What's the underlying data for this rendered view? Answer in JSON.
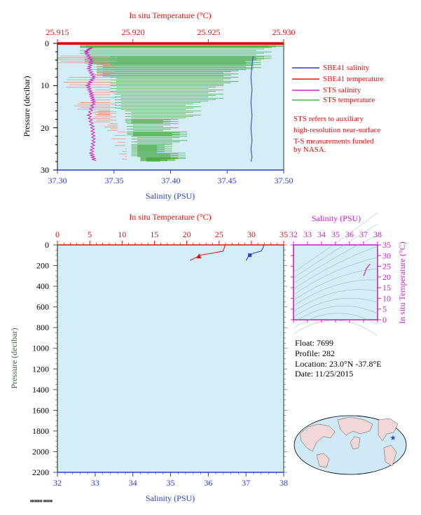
{
  "colors": {
    "background": "#ffffff",
    "plot_bg": "#d3eef6",
    "salinity": "#2a3ccc",
    "temperature": "#e01010",
    "sts_salinity": "#d020d0",
    "sts_temperature": "#4dab4d",
    "sts_temperature_band": "#f5968a",
    "pressure_axis": "#3c6a3c",
    "ts_axis": "#cc20cc"
  },
  "top_panel": {
    "top_axis_label": "In situ Temperature (°C)",
    "bottom_axis_label": "Salinity (PSU)",
    "left_axis_label": "Pressure (decibar)",
    "top_ticks": [
      "25.915",
      "25.920",
      "25.925",
      "25.930"
    ],
    "bottom_ticks": [
      "37.30",
      "37.35",
      "37.40",
      "37.45",
      "37.50"
    ],
    "left_ticks": [
      "0",
      "10",
      "20",
      "30"
    ],
    "legend": [
      {
        "label": "SBE41 salinity"
      },
      {
        "label": "SBE41 temperature"
      },
      {
        "label": "STS salinity"
      },
      {
        "label": "STS temperature"
      }
    ],
    "note": [
      "STS refers to auxiliary",
      "high-resolution near-surface",
      "T-S measurements funded",
      "by NASA."
    ]
  },
  "bottom_panel": {
    "top_axis_label": "In situ Temperature (°C)",
    "bottom_axis_label": "Salinity (PSU)",
    "left_axis_label": "Pressure (decibar)",
    "top_ticks": [
      "0",
      "5",
      "10",
      "15",
      "20",
      "25",
      "30",
      "35"
    ],
    "bottom_ticks": [
      "32",
      "33",
      "34",
      "35",
      "36",
      "37",
      "38"
    ],
    "left_ticks": [
      "0",
      "200",
      "400",
      "600",
      "800",
      "1000",
      "1200",
      "1400",
      "1600",
      "1800",
      "2000",
      "2200"
    ]
  },
  "ts_panel": {
    "top_axis_label": "Salinity (PSU)",
    "right_axis_label": "In situ Temperature (°C)",
    "top_ticks": [
      "32",
      "33",
      "34",
      "35",
      "36",
      "37",
      "38"
    ],
    "right_ticks": [
      "35",
      "30",
      "25",
      "20",
      "15",
      "10",
      "5",
      "0"
    ]
  },
  "float_info": {
    "float": "Float:  7699",
    "profile": "Profile:  282",
    "location": "Location:  23.0°N  -37.8°E",
    "date": "Date:  11/25/2015"
  },
  "chart_data": [
    {
      "type": "line",
      "panel": "top",
      "xlim_salinity": [
        37.3,
        37.5
      ],
      "xlim_temperature": [
        25.915,
        25.93
      ],
      "ylim_pressure": [
        0,
        30
      ],
      "series": [
        {
          "name": "SBE41 salinity",
          "x": [
            37.473,
            37.472,
            37.471,
            37.472,
            37.471,
            37.472,
            37.471,
            37.472,
            37.471,
            37.472,
            37.471
          ],
          "y": [
            3,
            5,
            8,
            11,
            14,
            17,
            20,
            23,
            25,
            27,
            28
          ]
        },
        {
          "name": "STS salinity",
          "x": [
            37.33,
            37.325,
            37.33,
            37.328,
            37.332,
            37.327,
            37.33,
            37.332,
            37.328,
            37.331,
            37.332,
            37.33,
            37.333
          ],
          "y": [
            1,
            2,
            4,
            6,
            8,
            10,
            12,
            14,
            17,
            20,
            23,
            26,
            28
          ]
        },
        {
          "name": "STS temperature",
          "x": [
            25.93,
            25.9165,
            25.9292,
            25.9168,
            25.9285,
            25.9176,
            25.927,
            25.9185,
            25.926,
            25.9188,
            25.9245,
            25.9195,
            25.923,
            25.9196,
            25.9236,
            25.9199,
            25.9226,
            25.9199,
            25.9235,
            25.9205,
            25.9228
          ],
          "y": [
            0.5,
            1,
            3,
            4,
            5,
            6.5,
            8,
            10,
            12,
            14,
            16,
            18,
            19,
            21,
            22,
            24,
            25,
            26,
            27,
            27.5,
            28
          ]
        },
        {
          "name": "STS temperature (shaded band)",
          "x": [
            25.9152,
            25.9176,
            25.9158,
            25.9175,
            25.9165,
            25.9177,
            25.9176,
            25.9185,
            25.919,
            25.9195,
            25.9196
          ],
          "y": [
            3,
            5,
            8,
            11,
            14,
            16,
            17,
            19,
            21,
            25,
            28
          ]
        }
      ]
    },
    {
      "type": "line",
      "panel": "bottom",
      "xlim_salinity": [
        32,
        38
      ],
      "xlim_temperature": [
        0,
        35
      ],
      "ylim_pressure": [
        0,
        2200
      ],
      "series": [
        {
          "name": "SBE41 temperature",
          "x": [
            25.9,
            25.9,
            25.8,
            25.6,
            24,
            22,
            21.5,
            20.5
          ],
          "y": [
            0,
            10,
            30,
            60,
            80,
            100,
            120,
            150
          ]
        },
        {
          "name": "SBE41 salinity",
          "x": [
            37.47,
            37.47,
            37.45,
            37.4,
            37.2,
            37.1,
            37.05,
            37.0
          ],
          "y": [
            0,
            10,
            30,
            60,
            80,
            100,
            120,
            150
          ]
        }
      ]
    },
    {
      "type": "scatter",
      "panel": "ts",
      "xlim_salinity": [
        32,
        38
      ],
      "ylim_temperature": [
        0,
        35
      ],
      "series": [
        {
          "name": "T-S",
          "x": [
            37.0,
            37.1,
            37.2,
            37.4,
            37.47
          ],
          "y": [
            20.5,
            22,
            24,
            25.6,
            25.9
          ]
        }
      ]
    }
  ]
}
